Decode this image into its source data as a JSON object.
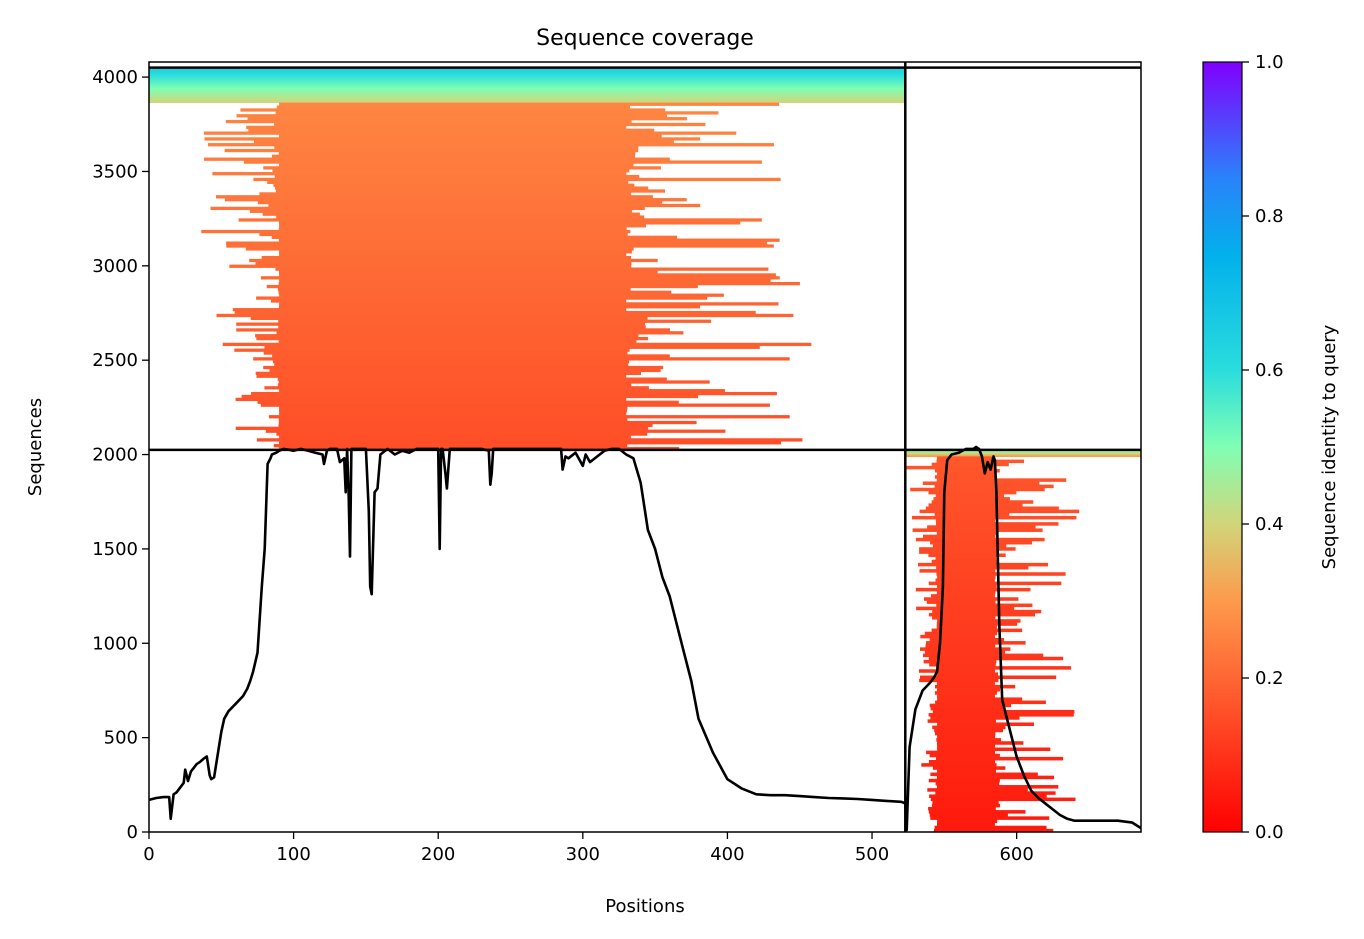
{
  "chart_data": {
    "type": "heatmap",
    "title": "Sequence coverage",
    "xlabel": "Positions",
    "ylabel": "Sequences",
    "xlim": [
      0,
      686
    ],
    "ylim": [
      0,
      4080
    ],
    "x_ticks": [
      0,
      100,
      200,
      300,
      400,
      500,
      600
    ],
    "y_ticks": [
      0,
      500,
      1000,
      1500,
      2000,
      2500,
      3000,
      3500,
      4000
    ],
    "grid": false,
    "colorbar": {
      "label": "Sequence identity to query",
      "colormap": "rainbow_r",
      "range": [
        0,
        1
      ],
      "ticks": [
        0.0,
        0.2,
        0.4,
        0.6,
        0.8,
        1.0
      ],
      "tick_labels": [
        "0.0",
        "0.2",
        "0.4",
        "0.6",
        "0.8",
        "1.0"
      ]
    },
    "chain_boundaries": {
      "vertical_position": 523,
      "horizontal_sequences": [
        2025,
        4050
      ]
    },
    "coverage_blocks": [
      {
        "name": "chain1-high-identity",
        "x_start": 0,
        "x_end": 523,
        "y_start": 3865,
        "y_end": 4050,
        "identity_range": [
          0.4,
          0.65
        ]
      },
      {
        "name": "chain1-alignments",
        "x_start": 84,
        "x_end": 345,
        "y_start": 2025,
        "y_end": 3865,
        "identity_range": [
          0.15,
          0.26
        ],
        "ragged_start_range": [
          20,
          90
        ],
        "ragged_end_range": [
          330,
          460
        ]
      },
      {
        "name": "chain2-high-identity",
        "x_start": 523,
        "x_end": 686,
        "y_start": 1990,
        "y_end": 2025,
        "identity_range": [
          0.3,
          0.55
        ]
      },
      {
        "name": "chain2-alignments",
        "x_start": 545,
        "x_end": 585,
        "y_start": 0,
        "y_end": 1990,
        "identity_range": [
          0.05,
          0.17
        ],
        "ragged_start_range": [
          523,
          545
        ],
        "ragged_end_range": [
          585,
          645
        ]
      }
    ],
    "coverage_line": {
      "name": "coverage",
      "x": [
        0,
        5,
        10,
        14,
        15,
        17,
        19,
        21,
        24,
        25,
        27,
        29,
        31,
        33,
        35,
        38,
        40,
        42,
        43,
        45,
        50,
        52,
        55,
        60,
        65,
        68,
        70,
        72,
        75,
        78,
        80,
        82,
        84,
        85,
        88,
        90,
        93,
        97,
        100,
        105,
        110,
        115,
        120,
        121,
        123,
        125,
        130,
        132,
        135,
        136,
        137,
        138,
        139,
        140,
        142,
        145,
        148,
        150,
        152,
        153,
        154,
        156,
        158,
        160,
        165,
        170,
        175,
        180,
        185,
        190,
        195,
        200,
        201,
        202,
        203,
        205,
        206,
        208,
        210,
        220,
        230,
        235,
        236,
        237,
        238,
        240,
        250,
        260,
        270,
        280,
        285,
        286,
        288,
        290,
        295,
        300,
        302,
        305,
        310,
        315,
        320,
        325,
        330,
        335,
        340,
        345,
        350,
        355,
        360,
        365,
        370,
        375,
        380,
        390,
        400,
        410,
        420,
        430,
        440,
        450,
        460,
        470,
        480,
        490,
        500,
        510,
        520,
        522,
        523,
        524,
        526,
        530,
        535,
        540,
        543,
        545,
        547,
        549,
        550,
        552,
        555,
        560,
        565,
        570,
        572,
        574,
        576,
        578,
        580,
        582,
        584,
        585,
        586,
        588,
        590,
        595,
        600,
        605,
        610,
        615,
        620,
        625,
        630,
        635,
        640,
        645,
        650,
        660,
        670,
        680,
        686
      ],
      "y": [
        170,
        180,
        185,
        185,
        70,
        200,
        210,
        230,
        260,
        330,
        270,
        320,
        340,
        360,
        370,
        390,
        400,
        300,
        280,
        290,
        530,
        600,
        640,
        680,
        720,
        760,
        800,
        850,
        950,
        1300,
        1500,
        1950,
        1980,
        2000,
        2010,
        2020,
        2030,
        2025,
        2020,
        2030,
        2020,
        2010,
        2000,
        1950,
        2020,
        2030,
        2030,
        1960,
        1980,
        1800,
        2030,
        1800,
        1460,
        2030,
        2030,
        2030,
        2030,
        2030,
        1700,
        1300,
        1260,
        1800,
        1820,
        2000,
        2030,
        2000,
        2020,
        2010,
        2030,
        2030,
        2030,
        2030,
        1500,
        2030,
        2030,
        1900,
        1820,
        2030,
        2030,
        2030,
        2030,
        2020,
        1840,
        1900,
        2030,
        2030,
        2030,
        2030,
        2030,
        2030,
        2030,
        1920,
        1990,
        1980,
        2010,
        1940,
        2000,
        1960,
        1990,
        2020,
        2030,
        2030,
        2000,
        1980,
        1850,
        1600,
        1500,
        1350,
        1250,
        1100,
        950,
        800,
        600,
        420,
        280,
        230,
        200,
        195,
        195,
        190,
        185,
        180,
        178,
        175,
        170,
        165,
        160,
        155,
        150,
        10,
        450,
        650,
        750,
        790,
        820,
        850,
        1000,
        1300,
        1800,
        1970,
        2000,
        2010,
        2030,
        2030,
        2040,
        2030,
        1990,
        1900,
        1960,
        1920,
        1990,
        1970,
        1800,
        1100,
        700,
        550,
        400,
        300,
        220,
        180,
        150,
        120,
        90,
        70,
        60,
        60,
        60,
        60,
        60,
        50,
        20
      ]
    }
  }
}
